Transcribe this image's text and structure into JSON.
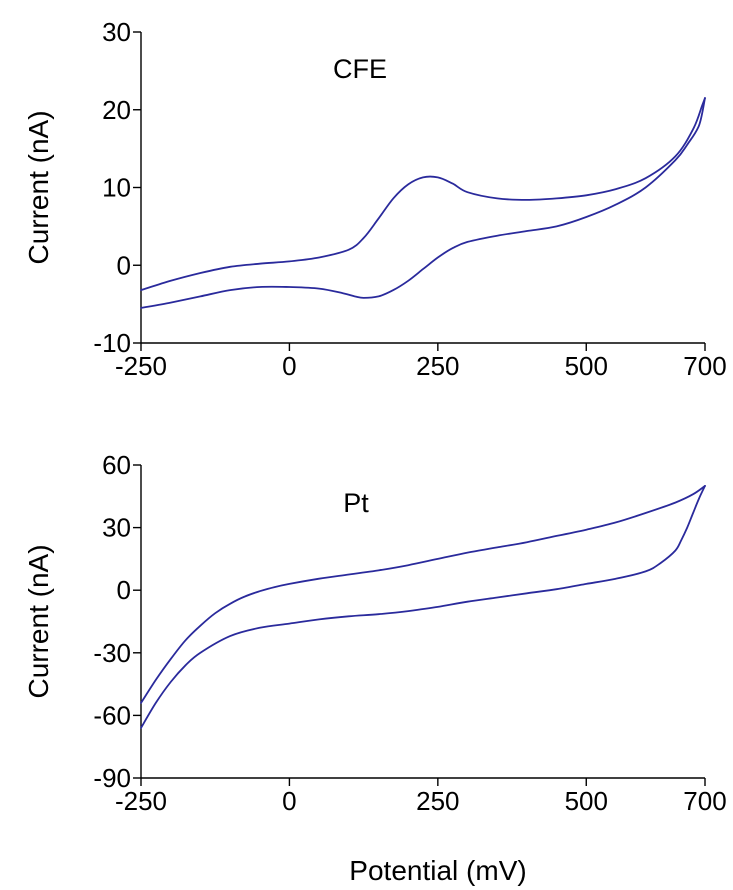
{
  "colors": {
    "curve": "#2a2a9c",
    "axis": "#000000",
    "background": "#ffffff"
  },
  "chart_data": [
    {
      "type": "line",
      "panel_label": "CFE",
      "xlabel": "",
      "ylabel": "Current (nA)",
      "xlim": [
        -250,
        700
      ],
      "ylim": [
        -10,
        30
      ],
      "xticks": [
        -250,
        0,
        250,
        500,
        700
      ],
      "yticks": [
        -10,
        0,
        10,
        20,
        30
      ],
      "grid": false,
      "series": [
        {
          "x": [
            -250,
            -200,
            -150,
            -100,
            -50,
            0,
            50,
            100,
            125,
            150,
            175,
            200,
            225,
            250,
            275,
            300,
            350,
            400,
            450,
            500,
            550,
            600,
            650,
            680,
            695,
            700
          ],
          "y": [
            -3.2,
            -2.0,
            -1.0,
            -0.2,
            0.2,
            0.5,
            1.0,
            2.0,
            3.5,
            6.0,
            8.6,
            10.4,
            11.3,
            11.3,
            10.5,
            9.4,
            8.6,
            8.4,
            8.6,
            9.0,
            9.8,
            11.2,
            14.0,
            17.5,
            20.5,
            21.5
          ]
        },
        {
          "x": [
            700,
            690,
            670,
            650,
            600,
            550,
            500,
            450,
            400,
            350,
            300,
            275,
            250,
            225,
            200,
            175,
            150,
            125,
            110,
            90,
            50,
            0,
            -50,
            -100,
            -150,
            -200,
            -250
          ],
          "y": [
            21.5,
            18.0,
            15.5,
            13.5,
            10.0,
            7.8,
            6.2,
            5.0,
            4.4,
            3.8,
            3.0,
            2.2,
            1.0,
            -0.5,
            -2.0,
            -3.2,
            -4.0,
            -4.2,
            -4.0,
            -3.6,
            -3.0,
            -2.8,
            -2.8,
            -3.2,
            -4.0,
            -4.8,
            -5.5
          ]
        }
      ]
    },
    {
      "type": "line",
      "panel_label": "Pt",
      "xlabel": "Potential (mV)",
      "ylabel": "Current (nA)",
      "xlim": [
        -250,
        700
      ],
      "ylim": [
        -90,
        60
      ],
      "xticks": [
        -250,
        0,
        250,
        500,
        700
      ],
      "yticks": [
        -90,
        -60,
        -30,
        0,
        30,
        60
      ],
      "grid": false,
      "series": [
        {
          "x": [
            -250,
            -225,
            -200,
            -175,
            -150,
            -125,
            -100,
            -75,
            -50,
            -25,
            0,
            50,
            100,
            150,
            200,
            250,
            300,
            350,
            400,
            450,
            500,
            550,
            600,
            650,
            680,
            700
          ],
          "y": [
            -54,
            -43,
            -33,
            -24,
            -17,
            -11,
            -6.5,
            -3,
            -0.5,
            1.5,
            3,
            5.5,
            7.5,
            9.5,
            12,
            15,
            18,
            20.5,
            23,
            26,
            29,
            32.5,
            37,
            42,
            46,
            50
          ]
        },
        {
          "x": [
            700,
            690,
            680,
            670,
            660,
            650,
            625,
            600,
            550,
            500,
            450,
            400,
            350,
            300,
            250,
            200,
            150,
            100,
            50,
            0,
            -50,
            -100,
            -150,
            -175,
            -200,
            -225,
            -250
          ],
          "y": [
            50,
            44,
            37,
            30,
            24,
            19,
            13,
            9,
            5.5,
            3,
            0.5,
            -1.5,
            -3.5,
            -5.5,
            -8,
            -10,
            -11.5,
            -12.5,
            -14,
            -16,
            -18,
            -22,
            -30,
            -36,
            -44,
            -54,
            -66
          ]
        }
      ]
    }
  ]
}
